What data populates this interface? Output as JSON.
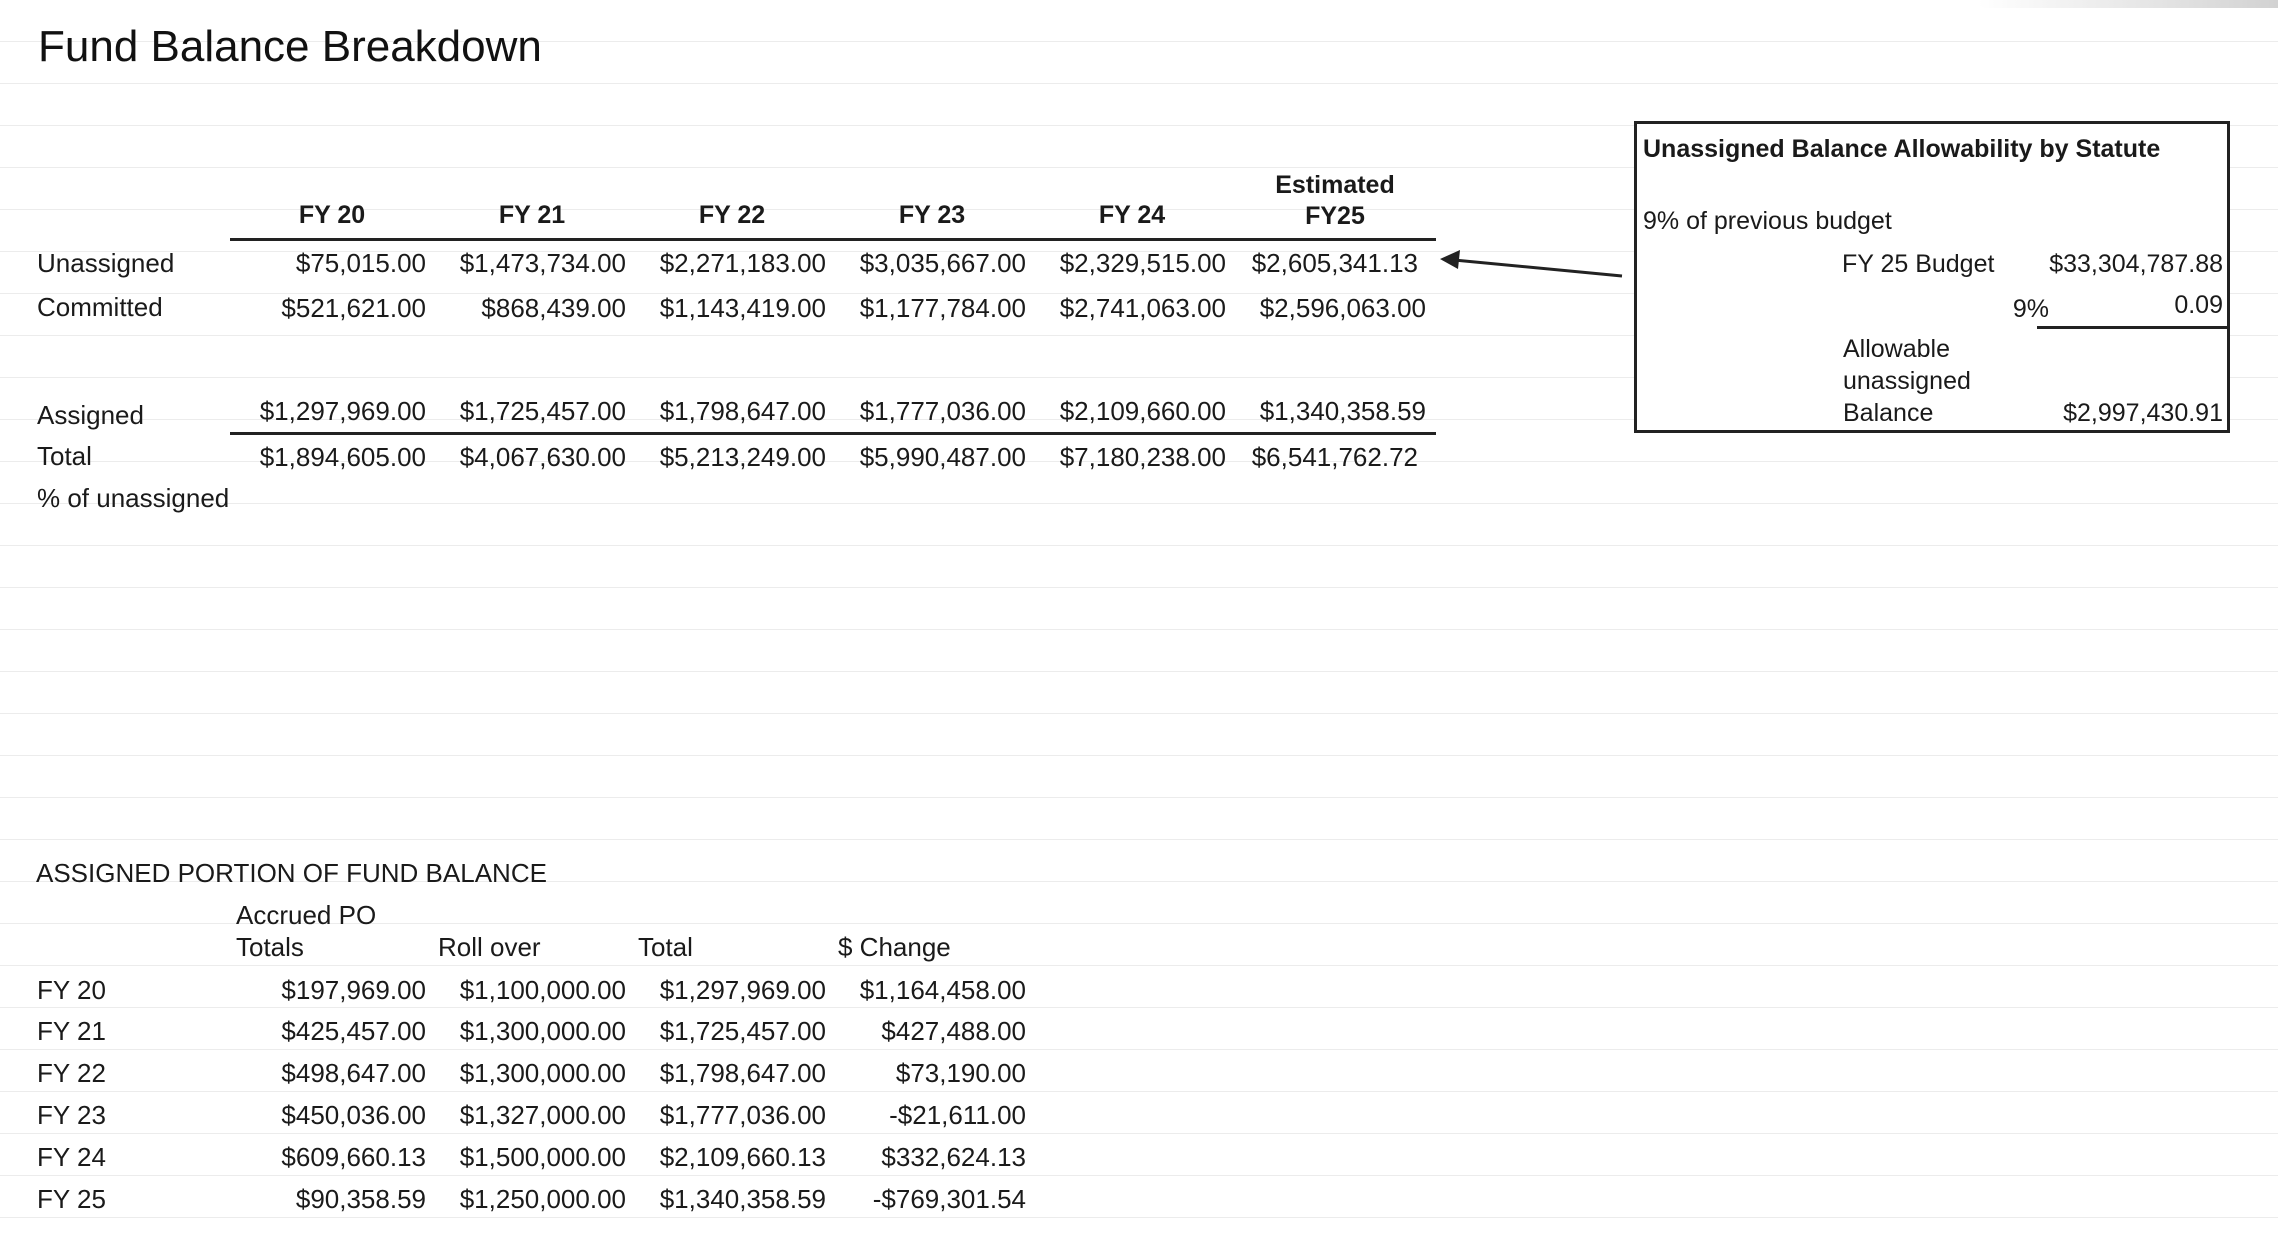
{
  "title": "Fund Balance Breakdown",
  "summary_table": {
    "headers": [
      "FY 20",
      "FY 21",
      "FY 22",
      "FY 23",
      "FY 24",
      "Estimated FY25"
    ],
    "header_estimated_line1": "Estimated",
    "header_estimated_line2": "FY25",
    "rows": [
      {
        "label": "Unassigned",
        "values": [
          "$75,015.00",
          "$1,473,734.00",
          "$2,271,183.00",
          "$3,035,667.00",
          "$2,329,515.00",
          "$2,605,341.13"
        ]
      },
      {
        "label": "Committed",
        "values": [
          "$521,621.00",
          "$868,439.00",
          "$1,143,419.00",
          "$1,177,784.00",
          "$2,741,063.00",
          "$2,596,063.00"
        ]
      },
      {
        "label": "Assigned",
        "values": [
          "$1,297,969.00",
          "$1,725,457.00",
          "$1,798,647.00",
          "$1,777,036.00",
          "$2,109,660.00",
          "$1,340,358.59"
        ]
      },
      {
        "label": "Total",
        "values": [
          "$1,894,605.00",
          "$4,067,630.00",
          "$5,213,249.00",
          "$5,990,487.00",
          "$7,180,238.00",
          "$6,541,762.72"
        ]
      },
      {
        "label": "% of unassigned",
        "values": []
      }
    ]
  },
  "statute_box": {
    "title": "Unassigned Balance Allowability by Statute",
    "subtitle": "9% of previous budget",
    "budget_label": "FY 25 Budget",
    "budget_value": "$33,304,787.88",
    "pct_label": "9%",
    "pct_value": "0.09",
    "allowable_label_1": "Allowable",
    "allowable_label_2": "unassigned",
    "allowable_label_3": "Balance",
    "allowable_value": "$2,997,430.91"
  },
  "assigned_table": {
    "title": "ASSIGNED PORTION OF FUND BALANCE",
    "col_headers": {
      "accrued_line1": "Accrued PO",
      "accrued_line2": "Totals",
      "rollover": "Roll over",
      "total": "Total",
      "change": "$ Change"
    },
    "rows": [
      {
        "label": "FY 20",
        "accrued": "$197,969.00",
        "rollover": "$1,100,000.00",
        "total": "$1,297,969.00",
        "change": "$1,164,458.00"
      },
      {
        "label": "FY 21",
        "accrued": "$425,457.00",
        "rollover": "$1,300,000.00",
        "total": "$1,725,457.00",
        "change": "$427,488.00"
      },
      {
        "label": "FY 22",
        "accrued": "$498,647.00",
        "rollover": "$1,300,000.00",
        "total": "$1,798,647.00",
        "change": "$73,190.00"
      },
      {
        "label": "FY 23",
        "accrued": "$450,036.00",
        "rollover": "$1,327,000.00",
        "total": "$1,777,036.00",
        "change": "-$21,611.00"
      },
      {
        "label": "FY 24",
        "accrued": "$609,660.13",
        "rollover": "$1,500,000.00",
        "total": "$2,109,660.13",
        "change": "$332,624.13"
      },
      {
        "label": "FY 25",
        "accrued": "$90,358.59",
        "rollover": "$1,250,000.00",
        "total": "$1,340,358.59",
        "change": "-$769,301.54"
      }
    ]
  }
}
